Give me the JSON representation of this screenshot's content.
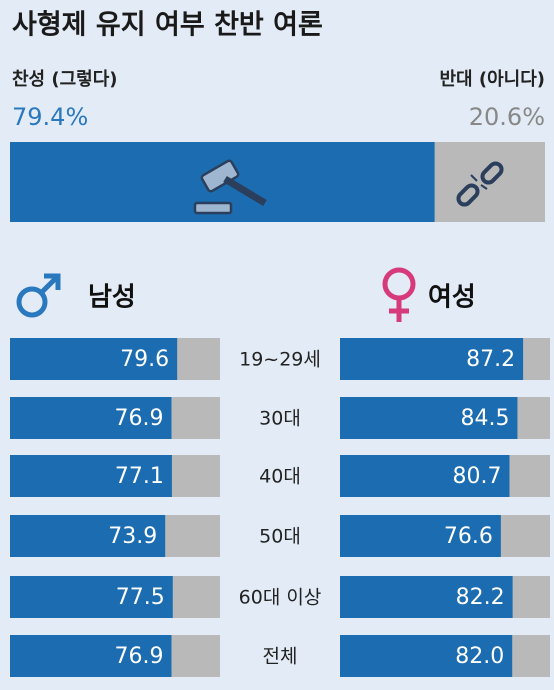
{
  "chart_data": {
    "type": "bar",
    "title": "사형제 유지 여부 찬반 여론",
    "summary": {
      "categories": [
        "찬성 (그렇다)",
        "반대 (아니다)"
      ],
      "values": [
        79.4,
        20.6
      ],
      "value_labels": [
        "79.4%",
        "20.6%"
      ],
      "colors": [
        "#1b6cb0",
        "#b9b9b9"
      ]
    },
    "categories": [
      "19~29세",
      "30대",
      "40대",
      "50대",
      "60대 이상",
      "전체"
    ],
    "series": [
      {
        "name": "남성",
        "color": "#1b6cb0",
        "values": [
          79.6,
          76.9,
          77.1,
          73.9,
          77.5,
          76.9
        ],
        "value_labels": [
          "79.6",
          "76.9",
          "77.1",
          "73.9",
          "77.5",
          "76.9"
        ]
      },
      {
        "name": "여성",
        "color": "#1b6cb0",
        "values": [
          87.2,
          84.5,
          80.7,
          76.6,
          82.2,
          82.0
        ],
        "value_labels": [
          "87.2",
          "84.5",
          "80.7",
          "76.6",
          "82.2",
          "82.0"
        ]
      }
    ],
    "xlim": [
      0,
      100
    ]
  }
}
